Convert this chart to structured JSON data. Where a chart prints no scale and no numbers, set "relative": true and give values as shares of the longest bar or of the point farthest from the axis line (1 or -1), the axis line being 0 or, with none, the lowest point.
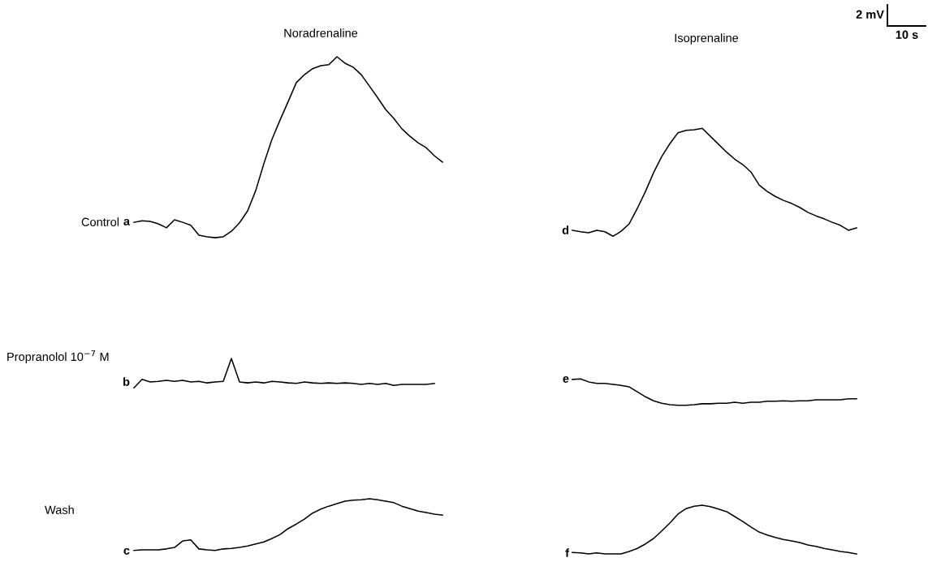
{
  "chart_data": {
    "type": "line",
    "relative": true,
    "marker": "none",
    "line_style": "solid",
    "categories": [
      null,
      null,
      null,
      null,
      null,
      null,
      null,
      null,
      null,
      null,
      null,
      null,
      null,
      null,
      null,
      null,
      null,
      null,
      null,
      null,
      null,
      null,
      null,
      null,
      null,
      null,
      null,
      null,
      null,
      null,
      null,
      null,
      null,
      null,
      null,
      null,
      null,
      null,
      null,
      null,
      null,
      null,
      null,
      null,
      null,
      null,
      null,
      null,
      null,
      null,
      null,
      null,
      null,
      null,
      null,
      null,
      null,
      null,
      null,
      null,
      null,
      null,
      null,
      null,
      null,
      null,
      null,
      null,
      null,
      null,
      null,
      null,
      null,
      null,
      null,
      null,
      null,
      null,
      null,
      null,
      null,
      null,
      null,
      null,
      null,
      null,
      null,
      null,
      null,
      null
    ],
    "annotations": [
      "Noradrenaline",
      "Isoprenaline",
      "Control",
      "Propranolol 10$^{−7}$ M",
      "Wash",
      "a",
      "b",
      "c",
      "d",
      "e",
      "f",
      "2 mV",
      "10 s"
    ],
    "series": [
      {
        "color": "#000000",
        "values": [
          0.667,
          0.67,
          0.669,
          0.664,
          0.656,
          0.672,
          0.667,
          0.661,
          0.641,
          0.638,
          0.636,
          0.638,
          0.649,
          0.666,
          0.69,
          0.731,
          0.785,
          0.834,
          0.873,
          0.91,
          0.948,
          0.964,
          0.976,
          0.982,
          0.984,
          1.0,
          0.987,
          0.979,
          0.964,
          0.941,
          0.918,
          0.894,
          0.876,
          0.855,
          0.84,
          0.827,
          0.817,
          0.801,
          0.788,
          null,
          null,
          null,
          null,
          null,
          null,
          null,
          null,
          null,
          null,
          null,
          null,
          null,
          null,
          null,
          null,
          null,
          null,
          null,
          null,
          null,
          null,
          null,
          null,
          null,
          null,
          null,
          null,
          null,
          null,
          null,
          null,
          null,
          null,
          null,
          null,
          null,
          null,
          null,
          null,
          null,
          null,
          null,
          null,
          null,
          null,
          null,
          null,
          null,
          null,
          null
        ]
      },
      {
        "color": "#000000",
        "values": [
          0.334,
          0.351,
          0.346,
          0.347,
          0.349,
          0.347,
          0.349,
          0.346,
          0.347,
          0.344,
          0.346,
          0.347,
          0.393,
          0.346,
          0.344,
          0.346,
          0.344,
          0.347,
          0.346,
          0.344,
          0.343,
          0.346,
          0.344,
          0.343,
          0.344,
          0.343,
          0.344,
          0.343,
          0.341,
          0.343,
          0.341,
          0.343,
          0.339,
          0.341,
          0.341,
          0.341,
          0.341,
          0.343,
          null,
          null,
          null,
          null,
          null,
          null,
          null,
          null,
          null,
          null,
          null,
          null,
          null,
          null,
          null,
          null,
          null,
          null,
          null,
          null,
          null,
          null,
          null,
          null,
          null,
          null,
          null,
          null,
          null,
          null,
          null,
          null,
          null,
          null,
          null,
          null,
          null,
          null,
          null,
          null,
          null,
          null,
          null,
          null,
          null,
          null,
          null,
          null,
          null,
          null,
          null,
          null
        ]
      },
      {
        "color": "#000000",
        "values": [
          0.007,
          0.008,
          0.008,
          0.008,
          0.01,
          0.013,
          0.026,
          0.028,
          0.01,
          0.008,
          0.007,
          0.01,
          0.011,
          0.013,
          0.016,
          0.02,
          0.024,
          0.031,
          0.039,
          0.051,
          0.06,
          0.07,
          0.082,
          0.09,
          0.096,
          0.101,
          0.106,
          0.108,
          0.109,
          0.111,
          0.109,
          0.106,
          0.103,
          0.096,
          0.091,
          0.086,
          0.083,
          0.08,
          0.078,
          null,
          null,
          null,
          null,
          null,
          null,
          null,
          null,
          null,
          null,
          null,
          null,
          null,
          null,
          null,
          null,
          null,
          null,
          null,
          null,
          null,
          null,
          null,
          null,
          null,
          null,
          null,
          null,
          null,
          null,
          null,
          null,
          null,
          null,
          null,
          null,
          null,
          null,
          null,
          null,
          null,
          null,
          null,
          null,
          null,
          null,
          null,
          null,
          null,
          null,
          null
        ]
      },
      {
        "color": "#000000",
        "values": [
          null,
          null,
          null,
          null,
          null,
          null,
          null,
          null,
          null,
          null,
          null,
          null,
          null,
          null,
          null,
          null,
          null,
          null,
          null,
          null,
          null,
          null,
          null,
          null,
          null,
          null,
          null,
          null,
          null,
          null,
          null,
          null,
          null,
          null,
          null,
          null,
          null,
          null,
          null,
          null,
          null,
          null,
          null,
          null,
          null,
          null,
          null,
          null,
          null,
          null,
          null,
          null,
          null,
          null,
          0.651,
          0.648,
          0.646,
          0.651,
          0.648,
          0.639,
          0.649,
          0.664,
          0.695,
          0.729,
          0.767,
          0.799,
          0.825,
          0.847,
          0.852,
          0.853,
          0.856,
          0.84,
          0.824,
          0.808,
          0.794,
          0.783,
          0.768,
          0.742,
          0.729,
          0.719,
          0.711,
          0.705,
          0.697,
          0.687,
          0.68,
          0.674,
          0.667,
          0.661,
          0.651,
          0.656
        ]
      },
      {
        "color": "#000000",
        "values": [
          null,
          null,
          null,
          null,
          null,
          null,
          null,
          null,
          null,
          null,
          null,
          null,
          null,
          null,
          null,
          null,
          null,
          null,
          null,
          null,
          null,
          null,
          null,
          null,
          null,
          null,
          null,
          null,
          null,
          null,
          null,
          null,
          null,
          null,
          null,
          null,
          null,
          null,
          null,
          null,
          null,
          null,
          null,
          null,
          null,
          null,
          null,
          null,
          null,
          null,
          null,
          null,
          null,
          null,
          0.351,
          0.352,
          0.346,
          0.343,
          0.343,
          0.341,
          0.339,
          0.336,
          0.326,
          0.316,
          0.308,
          0.303,
          0.3,
          0.299,
          0.299,
          0.3,
          0.302,
          0.302,
          0.303,
          0.303,
          0.305,
          0.303,
          0.305,
          0.305,
          0.307,
          0.307,
          0.308,
          0.307,
          0.308,
          0.308,
          0.31,
          0.31,
          0.31,
          0.31,
          0.312,
          0.312
        ]
      },
      {
        "color": "#000000",
        "values": [
          null,
          null,
          null,
          null,
          null,
          null,
          null,
          null,
          null,
          null,
          null,
          null,
          null,
          null,
          null,
          null,
          null,
          null,
          null,
          null,
          null,
          null,
          null,
          null,
          null,
          null,
          null,
          null,
          null,
          null,
          null,
          null,
          null,
          null,
          null,
          null,
          null,
          null,
          null,
          null,
          null,
          null,
          null,
          null,
          null,
          null,
          null,
          null,
          null,
          null,
          null,
          null,
          null,
          null,
          0.003,
          0.002,
          0.0,
          0.002,
          0.0,
          0.0,
          0.0,
          0.005,
          0.011,
          0.02,
          0.031,
          0.046,
          0.062,
          0.08,
          0.091,
          0.096,
          0.098,
          0.095,
          0.09,
          0.085,
          0.075,
          0.065,
          0.054,
          0.044,
          0.038,
          0.033,
          0.029,
          0.026,
          0.023,
          0.018,
          0.015,
          0.011,
          0.008,
          0.005,
          0.003,
          0.0
        ]
      }
    ]
  }
}
